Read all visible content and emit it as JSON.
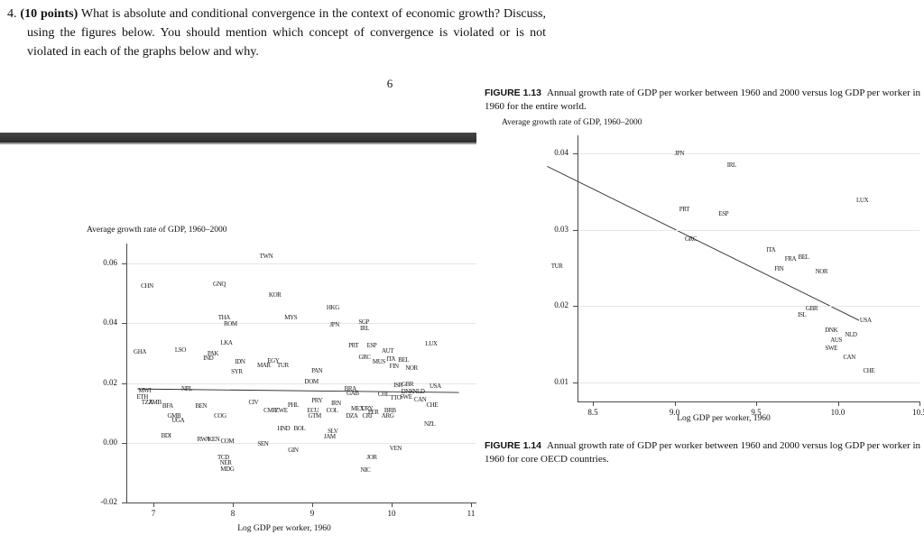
{
  "question": {
    "number": "4.",
    "points": "(10 points)",
    "body": " What is absolute and conditional convergence in the context of economic growth? Discuss, using the figures below. You should mention which concept of convergence is violated or is not violated in each of the graphs below and why."
  },
  "page_number": "6",
  "figures": {
    "fig13": {
      "label": "FIGURE 1.13",
      "caption": "Annual growth rate of GDP per worker between 1960 and 2000 versus log GDP per worker in 1960 for the entire world."
    },
    "fig14": {
      "label": "FIGURE 1.14",
      "caption": "Annual growth rate of GDP per worker between 1960 and 2000 versus log GDP per worker in 1960 for core OECD countries."
    }
  },
  "chart_data": [
    {
      "type": "scatter",
      "title": "Average growth rate of GDP, 1960–2000",
      "xlabel": "Log GDP per worker, 1960",
      "ylabel": "",
      "xlim": [
        6.7,
        11.1
      ],
      "ylim": [
        -0.02,
        0.066
      ],
      "grid": "horizontal",
      "point_style": "country-code-text",
      "xticks": [
        {
          "v": 7,
          "label": "7"
        },
        {
          "v": 8,
          "label": "8"
        },
        {
          "v": 9,
          "label": "9"
        },
        {
          "v": 10,
          "label": "10"
        },
        {
          "v": 11,
          "label": "11"
        }
      ],
      "yticks": [
        {
          "v": 0.06,
          "label": "0.06"
        },
        {
          "v": 0.04,
          "label": "0.04"
        },
        {
          "v": 0.02,
          "label": "0.02"
        },
        {
          "v": 0,
          "label": "0.00"
        },
        {
          "v": -0.02,
          "label": "-0.02"
        }
      ],
      "trend": {
        "x1": 6.8,
        "y1": 0.018,
        "x2": 10.85,
        "y2": 0.0168
      },
      "points": [
        {
          "label": "CHN",
          "x": 6.92,
          "y": 0.0525
        },
        {
          "label": "GNQ",
          "x": 7.83,
          "y": 0.0531
        },
        {
          "label": "TWN",
          "x": 8.42,
          "y": 0.0624
        },
        {
          "label": "KOR",
          "x": 8.53,
          "y": 0.0494
        },
        {
          "label": "HKG",
          "x": 9.26,
          "y": 0.0452
        },
        {
          "label": "THA",
          "x": 7.89,
          "y": 0.0419
        },
        {
          "label": "ROM",
          "x": 7.97,
          "y": 0.0398
        },
        {
          "label": "MYS",
          "x": 8.73,
          "y": 0.0419
        },
        {
          "label": "JPN",
          "x": 9.28,
          "y": 0.0395
        },
        {
          "label": "SGP",
          "x": 9.65,
          "y": 0.0404
        },
        {
          "label": "IRL",
          "x": 9.66,
          "y": 0.0383
        },
        {
          "label": "LKA",
          "x": 7.92,
          "y": 0.0334
        },
        {
          "label": "GHA",
          "x": 6.83,
          "y": 0.0304
        },
        {
          "label": "LSO",
          "x": 7.34,
          "y": 0.031
        },
        {
          "label": "PAK",
          "x": 7.75,
          "y": 0.0298
        },
        {
          "label": "IND",
          "x": 7.69,
          "y": 0.0283
        },
        {
          "label": "IDN",
          "x": 8.09,
          "y": 0.0271
        },
        {
          "label": "PRT",
          "x": 9.52,
          "y": 0.0325
        },
        {
          "label": "ESP",
          "x": 9.75,
          "y": 0.0325
        },
        {
          "label": "AUT",
          "x": 9.95,
          "y": 0.0307
        },
        {
          "label": "GRC",
          "x": 9.66,
          "y": 0.0286
        },
        {
          "label": "LUX",
          "x": 10.5,
          "y": 0.0331
        },
        {
          "label": "EGY",
          "x": 8.51,
          "y": 0.0274
        },
        {
          "label": "MAR",
          "x": 8.39,
          "y": 0.0259
        },
        {
          "label": "TUR",
          "x": 8.63,
          "y": 0.0259
        },
        {
          "label": "MUS",
          "x": 9.84,
          "y": 0.0271
        },
        {
          "label": "SYR",
          "x": 8.05,
          "y": 0.0238
        },
        {
          "label": "PAN",
          "x": 9.06,
          "y": 0.0241
        },
        {
          "label": "DOM",
          "x": 8.99,
          "y": 0.0205
        },
        {
          "label": "ITA",
          "x": 9.99,
          "y": 0.028
        },
        {
          "label": "BEL",
          "x": 10.15,
          "y": 0.0277
        },
        {
          "label": "FIN",
          "x": 10.03,
          "y": 0.0256
        },
        {
          "label": "NOR",
          "x": 10.25,
          "y": 0.025
        },
        {
          "label": "USA",
          "x": 10.55,
          "y": 0.0189
        },
        {
          "label": "ISR",
          "x": 10.08,
          "y": 0.0192
        },
        {
          "label": "GBR",
          "x": 10.2,
          "y": 0.0195
        },
        {
          "label": "DNK",
          "x": 10.2,
          "y": 0.0171
        },
        {
          "label": "NLD",
          "x": 10.34,
          "y": 0.0171
        },
        {
          "label": "SWE",
          "x": 10.18,
          "y": 0.0153
        },
        {
          "label": "CAN",
          "x": 10.36,
          "y": 0.0144
        },
        {
          "label": "CHE",
          "x": 10.51,
          "y": 0.0126
        },
        {
          "label": "NPL",
          "x": 7.42,
          "y": 0.018
        },
        {
          "label": "MWI",
          "x": 6.89,
          "y": 0.0174
        },
        {
          "label": "ETH",
          "x": 6.86,
          "y": 0.0153
        },
        {
          "label": "TZA",
          "x": 6.92,
          "y": 0.0135
        },
        {
          "label": "ZMB",
          "x": 7.02,
          "y": 0.0135
        },
        {
          "label": "BFA",
          "x": 7.18,
          "y": 0.0123
        },
        {
          "label": "BEN",
          "x": 7.6,
          "y": 0.0123
        },
        {
          "label": "CIV",
          "x": 8.26,
          "y": 0.0135
        },
        {
          "label": "PHL",
          "x": 8.76,
          "y": 0.0126
        },
        {
          "label": "PRY",
          "x": 9.06,
          "y": 0.0141
        },
        {
          "label": "IRN",
          "x": 9.3,
          "y": 0.0132
        },
        {
          "label": "GAB",
          "x": 9.51,
          "y": 0.0165
        },
        {
          "label": "BRA",
          "x": 9.48,
          "y": 0.018
        },
        {
          "label": "CHL",
          "x": 9.9,
          "y": 0.0162
        },
        {
          "label": "TTO",
          "x": 10.05,
          "y": 0.015
        },
        {
          "label": "CMR",
          "x": 8.47,
          "y": 0.0108
        },
        {
          "label": "ZWE",
          "x": 8.61,
          "y": 0.0108
        },
        {
          "label": "ECU",
          "x": 9.01,
          "y": 0.0108
        },
        {
          "label": "COL",
          "x": 9.25,
          "y": 0.0108
        },
        {
          "label": "GTM",
          "x": 9.03,
          "y": 0.009
        },
        {
          "label": "MEX",
          "x": 9.57,
          "y": 0.0114
        },
        {
          "label": "URY",
          "x": 9.69,
          "y": 0.0114
        },
        {
          "label": "PER",
          "x": 9.77,
          "y": 0.0102
        },
        {
          "label": "BRB",
          "x": 9.98,
          "y": 0.0108
        },
        {
          "label": "DZA",
          "x": 9.5,
          "y": 0.009
        },
        {
          "label": "CRI",
          "x": 9.69,
          "y": 0.009
        },
        {
          "label": "ARG",
          "x": 9.95,
          "y": 0.009
        },
        {
          "label": "NZL",
          "x": 10.48,
          "y": 0.0063
        },
        {
          "label": "GMB",
          "x": 7.26,
          "y": 0.009
        },
        {
          "label": "UGA",
          "x": 7.31,
          "y": 0.0075
        },
        {
          "label": "COG",
          "x": 7.84,
          "y": 0.009
        },
        {
          "label": "HND",
          "x": 8.64,
          "y": 0.0048
        },
        {
          "label": "BOL",
          "x": 8.84,
          "y": 0.0048
        },
        {
          "label": "SLV",
          "x": 9.26,
          "y": 0.0039
        },
        {
          "label": "JAM",
          "x": 9.22,
          "y": 0.0021
        },
        {
          "label": "BDI",
          "x": 7.16,
          "y": 0.0024
        },
        {
          "label": "RWA",
          "x": 7.63,
          "y": 0.0012
        },
        {
          "label": "KEN",
          "x": 7.76,
          "y": 0.0012
        },
        {
          "label": "COM",
          "x": 7.93,
          "y": 0.0006
        },
        {
          "label": "SEN",
          "x": 8.38,
          "y": -0.0003
        },
        {
          "label": "GIN",
          "x": 8.76,
          "y": -0.0024
        },
        {
          "label": "VEN",
          "x": 10.05,
          "y": -0.0018
        },
        {
          "label": "JOR",
          "x": 9.75,
          "y": -0.0048
        },
        {
          "label": "NIC",
          "x": 9.67,
          "y": -0.009
        },
        {
          "label": "TCD",
          "x": 7.88,
          "y": -0.0048
        },
        {
          "label": "NER",
          "x": 7.91,
          "y": -0.0066
        },
        {
          "label": "MDG",
          "x": 7.93,
          "y": -0.0087
        }
      ]
    },
    {
      "type": "scatter",
      "title": "Average growth rate of GDP, 1960–2000",
      "xlabel": "Log GDP per worker, 1960",
      "ylabel": "",
      "xlim": [
        8.4,
        10.5
      ],
      "ylim": [
        0.0075,
        0.042
      ],
      "grid": "horizontal",
      "point_style": "country-code-text",
      "xticks": [
        {
          "v": 8.5,
          "label": "8.5"
        },
        {
          "v": 9,
          "label": "9.0"
        },
        {
          "v": 9.5,
          "label": "9.5"
        },
        {
          "v": 10,
          "label": "10.0"
        },
        {
          "v": 10.5,
          "label": "10.5"
        }
      ],
      "yticks": [
        {
          "v": 0.04,
          "label": "0.04"
        },
        {
          "v": 0.03,
          "label": "0.03"
        },
        {
          "v": 0.02,
          "label": "0.02"
        },
        {
          "v": 0.01,
          "label": "0.01"
        }
      ],
      "trend": {
        "x1": 8.22,
        "y1": 0.0383,
        "x2": 10.13,
        "y2": 0.0181
      },
      "points": [
        {
          "label": "JPN",
          "x": 9.03,
          "y": 0.04
        },
        {
          "label": "IRL",
          "x": 9.35,
          "y": 0.0385
        },
        {
          "label": "LUX",
          "x": 10.15,
          "y": 0.0338
        },
        {
          "label": "PRT",
          "x": 9.06,
          "y": 0.0327
        },
        {
          "label": "ESP",
          "x": 9.3,
          "y": 0.0321
        },
        {
          "label": "GRC",
          "x": 9.1,
          "y": 0.0288
        },
        {
          "label": "TUR",
          "x": 8.28,
          "y": 0.0252
        },
        {
          "label": "ITA",
          "x": 9.59,
          "y": 0.0273
        },
        {
          "label": "FRA",
          "x": 9.71,
          "y": 0.0261
        },
        {
          "label": "BEL",
          "x": 9.79,
          "y": 0.0264
        },
        {
          "label": "FIN",
          "x": 9.64,
          "y": 0.0248
        },
        {
          "label": "NOR",
          "x": 9.9,
          "y": 0.0245
        },
        {
          "label": "GBR",
          "x": 9.84,
          "y": 0.0196
        },
        {
          "label": "ISL",
          "x": 9.78,
          "y": 0.0188
        },
        {
          "label": "USA",
          "x": 10.17,
          "y": 0.0181
        },
        {
          "label": "DNK",
          "x": 9.96,
          "y": 0.0168
        },
        {
          "label": "NLD",
          "x": 10.08,
          "y": 0.0162
        },
        {
          "label": "AUS",
          "x": 9.99,
          "y": 0.0155
        },
        {
          "label": "SWE",
          "x": 9.96,
          "y": 0.0144
        },
        {
          "label": "CAN",
          "x": 10.07,
          "y": 0.0132
        },
        {
          "label": "CHE",
          "x": 10.19,
          "y": 0.0115
        }
      ]
    }
  ]
}
